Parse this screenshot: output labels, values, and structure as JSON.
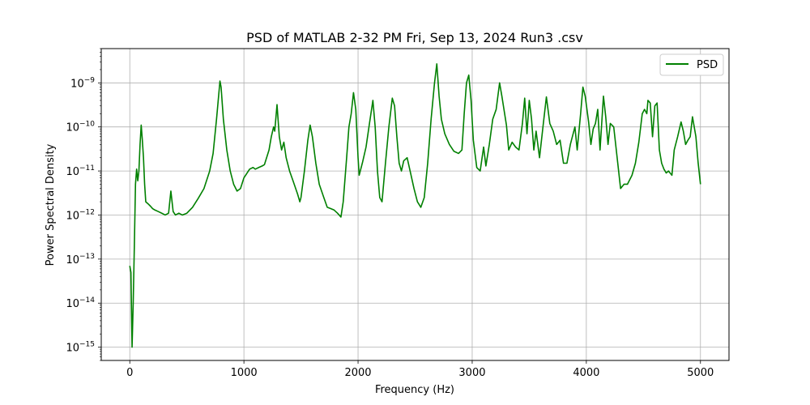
{
  "chart_data": {
    "type": "line",
    "title": "PSD of MATLAB 2-32 PM Fri, Sep 13, 2024 Run3 .csv",
    "xlabel": "Frequency (Hz)",
    "ylabel": "Power Spectral Density",
    "xlim": [
      -250,
      5250
    ],
    "ylim": [
      5e-16,
      6e-09
    ],
    "yscale": "log",
    "grid": true,
    "legend": {
      "position": "top-right",
      "entries": [
        "PSD"
      ]
    },
    "x_ticks": [
      0,
      1000,
      2000,
      3000,
      4000,
      5000
    ],
    "x_tick_labels": [
      "0",
      "1000",
      "2000",
      "3000",
      "4000",
      "5000"
    ],
    "y_ticks": [
      1e-15,
      1e-14,
      1e-13,
      1e-12,
      1e-11,
      1e-10,
      1e-09
    ],
    "y_tick_labels": [
      {
        "base": "10",
        "exp": "−15"
      },
      {
        "base": "10",
        "exp": "−14"
      },
      {
        "base": "10",
        "exp": "−13"
      },
      {
        "base": "10",
        "exp": "−12"
      },
      {
        "base": "10",
        "exp": "−11"
      },
      {
        "base": "10",
        "exp": "−10"
      },
      {
        "base": "10",
        "exp": "−9"
      }
    ],
    "series": [
      {
        "name": "PSD",
        "color": "#008000",
        "points": [
          [
            0,
            7e-14
          ],
          [
            10,
            5e-14
          ],
          [
            20,
            1e-15
          ],
          [
            30,
            1e-14
          ],
          [
            40,
            2e-13
          ],
          [
            50,
            5e-12
          ],
          [
            60,
            1.1e-11
          ],
          [
            70,
            6e-12
          ],
          [
            80,
            1e-11
          ],
          [
            90,
            4e-11
          ],
          [
            100,
            1.1e-10
          ],
          [
            110,
            5e-11
          ],
          [
            120,
            2e-11
          ],
          [
            130,
            5e-12
          ],
          [
            140,
            2e-12
          ],
          [
            160,
            1.8e-12
          ],
          [
            180,
            1.6e-12
          ],
          [
            200,
            1.4e-12
          ],
          [
            220,
            1.3e-12
          ],
          [
            250,
            1.2e-12
          ],
          [
            280,
            1.1e-12
          ],
          [
            310,
            1e-12
          ],
          [
            340,
            1.1e-12
          ],
          [
            360,
            3.5e-12
          ],
          [
            380,
            1.2e-12
          ],
          [
            400,
            1e-12
          ],
          [
            430,
            1.1e-12
          ],
          [
            460,
            1e-12
          ],
          [
            500,
            1.1e-12
          ],
          [
            550,
            1.5e-12
          ],
          [
            600,
            2.4e-12
          ],
          [
            650,
            4e-12
          ],
          [
            700,
            1e-11
          ],
          [
            730,
            2.5e-11
          ],
          [
            760,
            1.5e-10
          ],
          [
            790,
            1.1e-09
          ],
          [
            800,
            8e-10
          ],
          [
            820,
            1.5e-10
          ],
          [
            850,
            3e-11
          ],
          [
            880,
            1e-11
          ],
          [
            910,
            5e-12
          ],
          [
            940,
            3.5e-12
          ],
          [
            970,
            4e-12
          ],
          [
            1000,
            7e-12
          ],
          [
            1050,
            1.1e-11
          ],
          [
            1080,
            1.2e-11
          ],
          [
            1100,
            1.1e-11
          ],
          [
            1130,
            1.2e-11
          ],
          [
            1160,
            1.3e-11
          ],
          [
            1180,
            1.4e-11
          ],
          [
            1220,
            3e-11
          ],
          [
            1240,
            6e-11
          ],
          [
            1260,
            1e-10
          ],
          [
            1270,
            8e-11
          ],
          [
            1290,
            3.2e-10
          ],
          [
            1310,
            6e-11
          ],
          [
            1330,
            3e-11
          ],
          [
            1350,
            4.5e-11
          ],
          [
            1370,
            2e-11
          ],
          [
            1400,
            1e-11
          ],
          [
            1430,
            6e-12
          ],
          [
            1470,
            3e-12
          ],
          [
            1490,
            2e-12
          ],
          [
            1500,
            2.5e-12
          ],
          [
            1530,
            1e-11
          ],
          [
            1560,
            5e-11
          ],
          [
            1580,
            1.1e-10
          ],
          [
            1600,
            6e-11
          ],
          [
            1630,
            1.5e-11
          ],
          [
            1660,
            5e-12
          ],
          [
            1700,
            2.5e-12
          ],
          [
            1730,
            1.5e-12
          ],
          [
            1760,
            1.4e-12
          ],
          [
            1790,
            1.3e-12
          ],
          [
            1820,
            1.1e-12
          ],
          [
            1850,
            9e-13
          ],
          [
            1870,
            2e-12
          ],
          [
            1900,
            2e-11
          ],
          [
            1920,
            1e-10
          ],
          [
            1940,
            2e-10
          ],
          [
            1960,
            6e-10
          ],
          [
            1980,
            2.5e-10
          ],
          [
            2000,
            2e-11
          ],
          [
            2010,
            8e-12
          ],
          [
            2040,
            1.6e-11
          ],
          [
            2070,
            3.5e-11
          ],
          [
            2100,
            1.2e-10
          ],
          [
            2130,
            4e-10
          ],
          [
            2150,
            1e-10
          ],
          [
            2170,
            1e-11
          ],
          [
            2190,
            2.5e-12
          ],
          [
            2210,
            2e-12
          ],
          [
            2240,
            1.5e-11
          ],
          [
            2270,
            1e-10
          ],
          [
            2300,
            4.5e-10
          ],
          [
            2320,
            3e-10
          ],
          [
            2340,
            6e-11
          ],
          [
            2360,
            1.5e-11
          ],
          [
            2380,
            1e-11
          ],
          [
            2400,
            1.7e-11
          ],
          [
            2430,
            2e-11
          ],
          [
            2460,
            9e-12
          ],
          [
            2490,
            4e-12
          ],
          [
            2520,
            2e-12
          ],
          [
            2550,
            1.5e-12
          ],
          [
            2580,
            2.5e-12
          ],
          [
            2610,
            1.5e-11
          ],
          [
            2640,
            1.5e-10
          ],
          [
            2670,
            1e-09
          ],
          [
            2690,
            2.7e-09
          ],
          [
            2710,
            5e-10
          ],
          [
            2730,
            1.5e-10
          ],
          [
            2760,
            7e-11
          ],
          [
            2800,
            4e-11
          ],
          [
            2840,
            2.8e-11
          ],
          [
            2880,
            2.5e-11
          ],
          [
            2910,
            3e-11
          ],
          [
            2930,
            2e-10
          ],
          [
            2950,
            1e-09
          ],
          [
            2970,
            1.5e-09
          ],
          [
            2990,
            4e-10
          ],
          [
            3010,
            5e-11
          ],
          [
            3040,
            1.2e-11
          ],
          [
            3070,
            1e-11
          ],
          [
            3100,
            3.5e-11
          ],
          [
            3120,
            1.3e-11
          ],
          [
            3150,
            4e-11
          ],
          [
            3180,
            1.5e-10
          ],
          [
            3210,
            2.5e-10
          ],
          [
            3240,
            1e-09
          ],
          [
            3260,
            5e-10
          ],
          [
            3300,
            1.1e-10
          ],
          [
            3320,
            3e-11
          ],
          [
            3350,
            4.5e-11
          ],
          [
            3380,
            3.5e-11
          ],
          [
            3410,
            3e-11
          ],
          [
            3440,
            1.2e-10
          ],
          [
            3460,
            4.5e-10
          ],
          [
            3480,
            7e-11
          ],
          [
            3500,
            4e-10
          ],
          [
            3520,
            1.5e-10
          ],
          [
            3540,
            3e-11
          ],
          [
            3560,
            8e-11
          ],
          [
            3590,
            2e-11
          ],
          [
            3620,
            1e-10
          ],
          [
            3650,
            4.8e-10
          ],
          [
            3680,
            1.2e-10
          ],
          [
            3710,
            8e-11
          ],
          [
            3740,
            4e-11
          ],
          [
            3770,
            5e-11
          ],
          [
            3800,
            1.5e-11
          ],
          [
            3830,
            1.5e-11
          ],
          [
            3860,
            4e-11
          ],
          [
            3900,
            1e-10
          ],
          [
            3920,
            3e-11
          ],
          [
            3950,
            2e-10
          ],
          [
            3970,
            8e-10
          ],
          [
            3990,
            5e-10
          ],
          [
            4020,
            1.3e-10
          ],
          [
            4040,
            4e-11
          ],
          [
            4060,
            9e-11
          ],
          [
            4080,
            1.2e-10
          ],
          [
            4100,
            2.5e-10
          ],
          [
            4120,
            3e-11
          ],
          [
            4150,
            5e-10
          ],
          [
            4170,
            1.7e-10
          ],
          [
            4190,
            4e-11
          ],
          [
            4210,
            1.2e-10
          ],
          [
            4240,
            1e-10
          ],
          [
            4270,
            2e-11
          ],
          [
            4300,
            4e-12
          ],
          [
            4330,
            5e-12
          ],
          [
            4360,
            5e-12
          ],
          [
            4400,
            8e-12
          ],
          [
            4430,
            1.5e-11
          ],
          [
            4460,
            4.5e-11
          ],
          [
            4490,
            2e-10
          ],
          [
            4510,
            2.5e-10
          ],
          [
            4530,
            2e-10
          ],
          [
            4540,
            4e-10
          ],
          [
            4560,
            3.5e-10
          ],
          [
            4580,
            6e-11
          ],
          [
            4600,
            3e-10
          ],
          [
            4620,
            3.5e-10
          ],
          [
            4640,
            3e-11
          ],
          [
            4660,
            1.5e-11
          ],
          [
            4680,
            1.1e-11
          ],
          [
            4700,
            9e-12
          ],
          [
            4720,
            1e-11
          ],
          [
            4750,
            8e-12
          ],
          [
            4770,
            3e-11
          ],
          [
            4800,
            6e-11
          ],
          [
            4830,
            1.3e-10
          ],
          [
            4850,
            8e-11
          ],
          [
            4870,
            4e-11
          ],
          [
            4890,
            5e-11
          ],
          [
            4910,
            6e-11
          ],
          [
            4930,
            1.7e-10
          ],
          [
            4960,
            6e-11
          ],
          [
            4980,
            1.5e-11
          ],
          [
            5000,
            5e-12
          ]
        ]
      }
    ]
  }
}
